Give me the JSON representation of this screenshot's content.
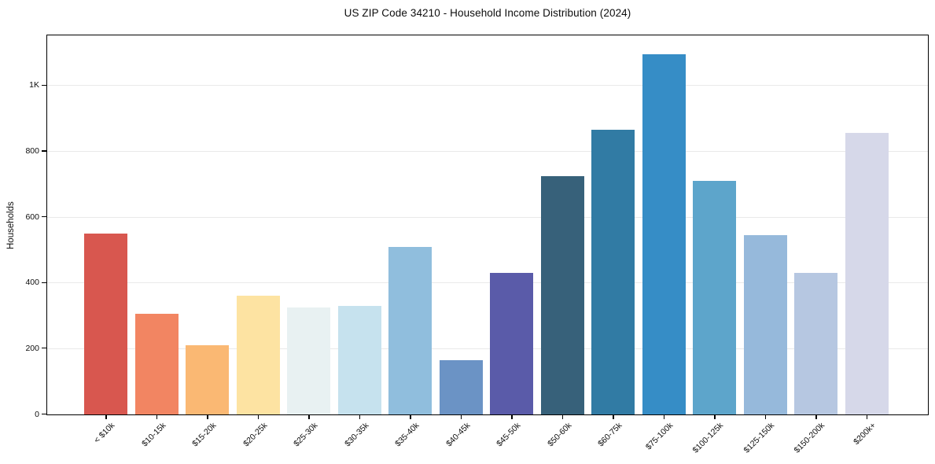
{
  "chart_data": {
    "type": "bar",
    "title": "US ZIP Code 34210 - Household Income Distribution (2024)",
    "xlabel": "",
    "ylabel": "Households",
    "categories": [
      "< $10k",
      "$10-15k",
      "$15-20k",
      "$20-25k",
      "$25-30k",
      "$30-35k",
      "$35-40k",
      "$40-45k",
      "$45-50k",
      "$50-60k",
      "$60-75k",
      "$75-100k",
      "$100-125k",
      "$125-150k",
      "$150-200k",
      "$200k+"
    ],
    "values": [
      550,
      305,
      210,
      360,
      325,
      330,
      510,
      165,
      430,
      725,
      865,
      1095,
      710,
      545,
      430,
      855
    ],
    "bar_colors": [
      "#d8574f",
      "#f28562",
      "#fab873",
      "#fde3a2",
      "#e8f1f2",
      "#c6e2ee",
      "#90bedd",
      "#6b93c5",
      "#5a5ba9",
      "#37617a",
      "#317ba4",
      "#368dc6",
      "#5da5cb",
      "#96b9db",
      "#b6c7e1",
      "#d6d8e9"
    ],
    "ylim": [
      0,
      1150
    ],
    "yticks": {
      "values": [
        0,
        200,
        400,
        600,
        800,
        1000
      ],
      "labels": [
        "0",
        "200",
        "400",
        "600",
        "800",
        "1K"
      ]
    },
    "grid": "horizontal-only",
    "legend": "none",
    "colors": {
      "background": "#ffffff",
      "frame": "#000000",
      "gridline": "#e9e9e9",
      "text": "#0d0d0d"
    }
  }
}
